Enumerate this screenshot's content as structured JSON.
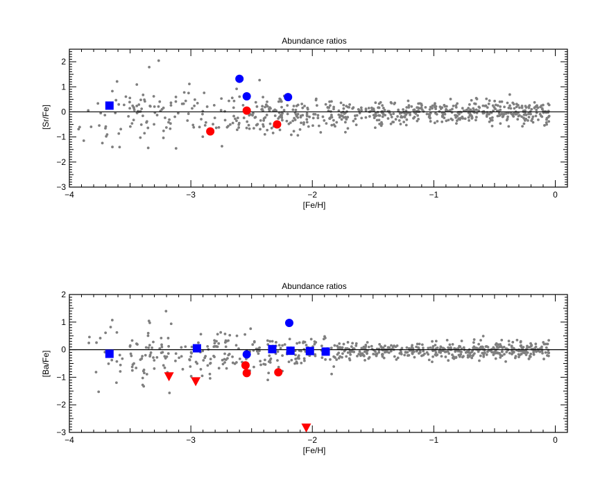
{
  "colors": {
    "background": "#0000ff",
    "star_marker": "#7f7f7f",
    "blue_marker": "#0000ff",
    "red_marker": "#ff0000",
    "axis": "#000000"
  },
  "chart_data": [
    {
      "type": "scatter",
      "title": "Abundance ratios",
      "xlabel": "[Fe/H]",
      "ylabel": "[Sr/Fe]",
      "xlim": [
        -4,
        0.1
      ],
      "ylim": [
        -3,
        2.5
      ],
      "x_ticks": [
        "−4",
        "−3",
        "−2",
        "−1",
        "0"
      ],
      "y_ticks": [
        "−3",
        "−2",
        "−1",
        "0",
        "1",
        "2"
      ],
      "reference_line_y": 0,
      "background": {
        "description_points": 700,
        "x_range": [
          -3.95,
          -0.05
        ],
        "seed": 11,
        "spread_metal_poor": 0.75,
        "spread_metal_rich": 0.25
      },
      "series": [
        {
          "marker": "circle",
          "color": "#0000ff",
          "points": [
            [
              -2.6,
              1.32
            ],
            [
              -2.54,
              0.62
            ],
            [
              -2.2,
              0.59
            ]
          ]
        },
        {
          "marker": "square",
          "color": "#0000ff",
          "points": [
            [
              -3.67,
              0.25
            ]
          ]
        },
        {
          "marker": "circle",
          "color": "#ff0000",
          "points": [
            [
              -2.54,
              0.05
            ],
            [
              -2.84,
              -0.78
            ],
            [
              -2.29,
              -0.5
            ]
          ]
        }
      ]
    },
    {
      "type": "scatter",
      "title": "Abundance ratios",
      "xlabel": "[Fe/H]",
      "ylabel": "[Ba/Fe]",
      "xlim": [
        -4,
        0.1
      ],
      "ylim": [
        -3,
        2
      ],
      "x_ticks": [
        "−4",
        "−3",
        "−2",
        "−1",
        "0"
      ],
      "y_ticks": [
        "−3",
        "−2",
        "−1",
        "0",
        "1",
        "2"
      ],
      "reference_line_y": 0,
      "background": {
        "description_points": 700,
        "x_range": [
          -3.95,
          -0.05
        ],
        "seed": 23,
        "spread_metal_poor": 0.7,
        "spread_metal_rich": 0.15
      },
      "series": [
        {
          "marker": "circle",
          "color": "#0000ff",
          "points": [
            [
              -2.19,
              0.97
            ],
            [
              -2.54,
              -0.17
            ]
          ]
        },
        {
          "marker": "square",
          "color": "#0000ff",
          "points": [
            [
              -3.67,
              -0.15
            ],
            [
              -2.95,
              0.05
            ],
            [
              -2.33,
              0.02
            ],
            [
              -2.18,
              -0.04
            ],
            [
              -2.02,
              -0.05
            ],
            [
              -1.89,
              -0.07
            ]
          ]
        },
        {
          "marker": "circle",
          "color": "#ff0000",
          "points": [
            [
              -2.55,
              -0.57
            ],
            [
              -2.54,
              -0.85
            ],
            [
              -2.28,
              -0.82
            ]
          ]
        },
        {
          "marker": "triangle-down",
          "color": "#ff0000",
          "points": [
            [
              -3.18,
              -0.97
            ],
            [
              -2.96,
              -1.15
            ],
            [
              -2.05,
              -2.83
            ]
          ]
        }
      ]
    }
  ]
}
